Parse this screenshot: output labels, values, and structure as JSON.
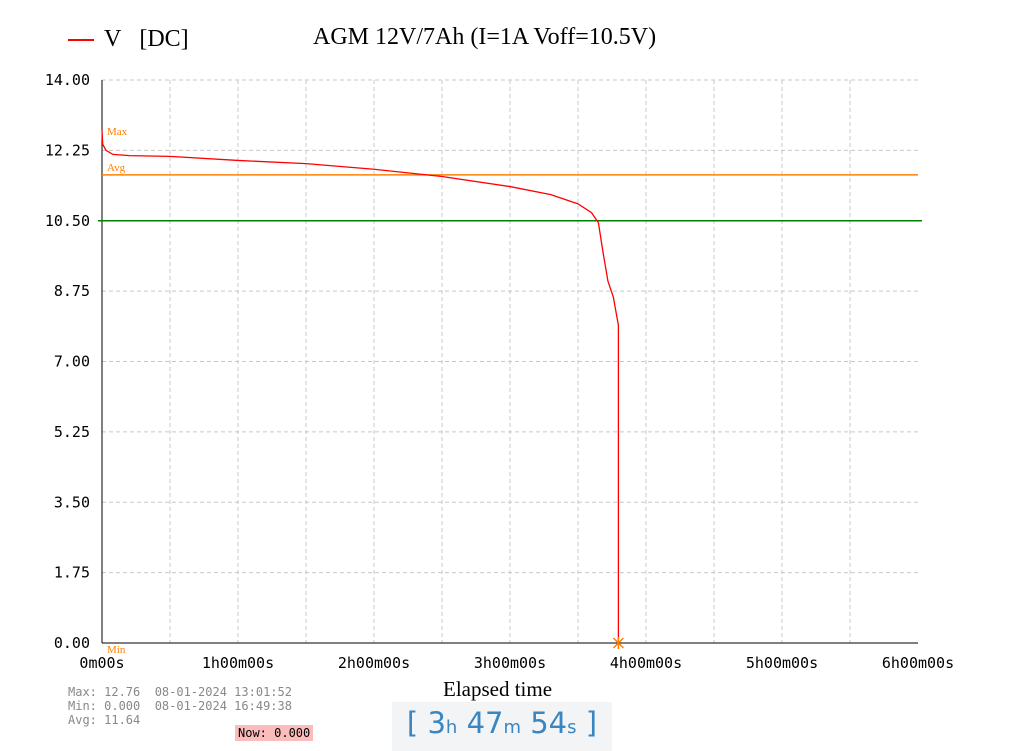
{
  "chart_data": {
    "type": "line",
    "title": "AGM 12V/7Ah (I=1A  Voff=10.5V)",
    "legend": {
      "label": "V",
      "mode": "[DC]",
      "color": "#ff0000",
      "placement": "top-left"
    },
    "xlabel": "Elapsed time",
    "ylabel": "",
    "xlim_hours": [
      0,
      6
    ],
    "ylim": [
      0,
      14
    ],
    "yticks": [
      "0.00",
      "1.75",
      "3.50",
      "5.25",
      "7.00",
      "8.75",
      "10.50",
      "12.25",
      "14.00"
    ],
    "xticks": [
      "0m00s",
      "1h00m00s",
      "2h00m00s",
      "3h00m00s",
      "4h00m00s",
      "5h00m00s",
      "6h00m00s"
    ],
    "grid": true,
    "series": [
      {
        "name": "V",
        "color": "#ff0000",
        "x_hours": [
          0,
          0.005,
          0.03,
          0.08,
          0.2,
          0.5,
          1.0,
          1.5,
          2.0,
          2.5,
          3.0,
          3.3,
          3.5,
          3.6,
          3.65,
          3.68,
          3.72,
          3.76,
          3.797,
          3.797
        ],
        "values": [
          12.76,
          12.4,
          12.25,
          12.15,
          12.12,
          12.1,
          12.0,
          11.92,
          11.78,
          11.6,
          11.35,
          11.15,
          10.92,
          10.7,
          10.45,
          9.8,
          9.0,
          8.6,
          7.9,
          0
        ]
      }
    ],
    "reference_lines": {
      "avg": {
        "label": "Avg",
        "value": 11.64,
        "color": "#ff8000"
      },
      "cutoff": {
        "value": 10.5,
        "color": "#008000"
      }
    },
    "markers": {
      "max_label": "Max",
      "min_label": "Min"
    }
  },
  "stats": {
    "max": "Max: 12.76  08-01-2024 13:01:52",
    "min": "Min: 0.000  08-01-2024 16:49:38",
    "avg": "Avg: 11.64",
    "now": "Now: 0.000"
  },
  "timer": {
    "open": "[",
    "h": "3",
    "h_unit": "h",
    "m": "47",
    "m_unit": "m",
    "s": "54",
    "s_unit": "s",
    "close": "]"
  }
}
